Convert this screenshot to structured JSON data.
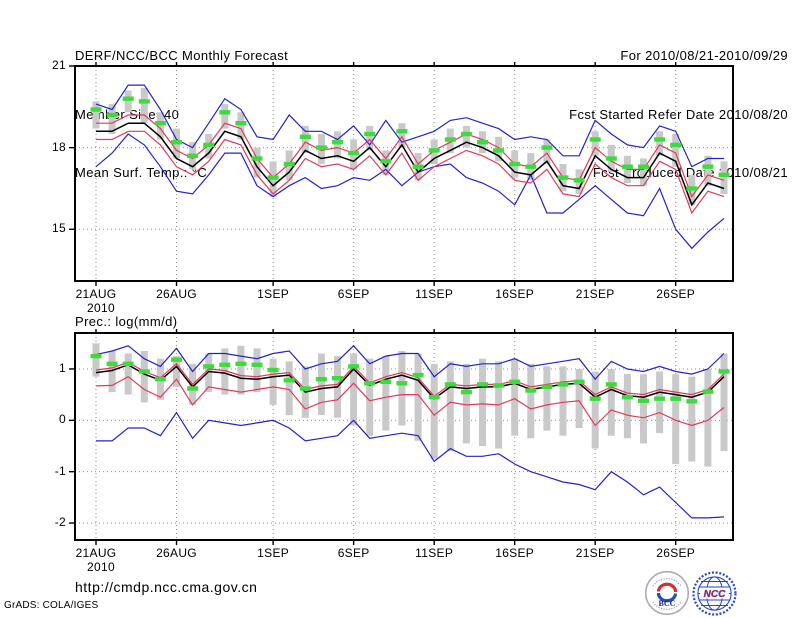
{
  "header": {
    "title": "DERF/NCC/BCC Monthly Forecast",
    "member_size": "Member Size=40",
    "for_range": "For 2010/08/21-2010/09/29",
    "fcst_started": "Fcst Started Refer Date 2010/08/20",
    "fcst_produced": "Fcst Produced Date 2010/08/21"
  },
  "footer": {
    "url": "http://cmdp.ncc.cma.gov.cn",
    "credit": "GrADS: COLA/IGES",
    "logos": {
      "bcc": "BCC",
      "ncc": "NCC"
    }
  },
  "chart_data": [
    {
      "type": "line",
      "title": "Mean Surf. Temp.: °C",
      "x_tick_labels": [
        "21AUG",
        "26AUG",
        "1SEP",
        "6SEP",
        "11SEP",
        "16SEP",
        "21SEP",
        "26SEP"
      ],
      "x_tick_days": [
        0,
        5,
        11,
        16,
        21,
        26,
        31,
        36
      ],
      "x_year_label": "2010",
      "n_points": 40,
      "ylim": [
        13.1,
        21
      ],
      "yticks": [
        15,
        18,
        21
      ],
      "ytick_labels": [
        "15",
        "18",
        "21"
      ],
      "grid": true,
      "series": [
        {
          "name": "ensemble-max",
          "color": "#2323cc",
          "values": [
            19.6,
            19.4,
            20.3,
            20.3,
            19.4,
            18.3,
            18.0,
            18.9,
            19.8,
            19.4,
            18.4,
            18.3,
            19.2,
            18.6,
            18.6,
            18.3,
            18.8,
            18.1,
            19.0,
            18.2,
            18.4,
            18.6,
            19.0,
            19.1,
            18.9,
            18.7,
            18.3,
            18.4,
            18.3,
            17.7,
            17.7,
            19.0,
            18.5,
            18.1,
            18.0,
            18.8,
            18.6,
            17.3,
            17.6,
            17.6
          ]
        },
        {
          "name": "ensemble-min",
          "color": "#2323cc",
          "values": [
            17.3,
            17.8,
            18.5,
            18.1,
            17.3,
            16.4,
            16.3,
            17.0,
            17.8,
            17.8,
            16.6,
            16.2,
            16.6,
            16.9,
            16.5,
            16.6,
            16.9,
            16.8,
            17.2,
            16.6,
            17.1,
            17.3,
            17.4,
            16.9,
            16.7,
            16.4,
            15.9,
            17.0,
            15.6,
            15.6,
            16.1,
            16.6,
            16.1,
            15.6,
            15.5,
            16.5,
            15.0,
            14.3,
            14.9,
            15.4
          ]
        },
        {
          "name": "mean-plus-std",
          "color": "#e23a58",
          "values": [
            18.9,
            18.9,
            19.2,
            19.2,
            18.7,
            17.9,
            17.6,
            18.1,
            18.9,
            18.7,
            17.6,
            16.9,
            17.4,
            18.2,
            17.9,
            18.0,
            17.8,
            18.3,
            17.6,
            18.4,
            17.4,
            17.9,
            18.2,
            18.5,
            18.3,
            18.0,
            17.4,
            17.3,
            17.8,
            16.9,
            16.8,
            18.0,
            17.5,
            17.2,
            17.2,
            18.1,
            17.8,
            16.2,
            17.0,
            16.8
          ]
        },
        {
          "name": "mean-minus-std",
          "color": "#e23a58",
          "values": [
            18.3,
            18.3,
            18.6,
            18.6,
            18.1,
            17.3,
            17.0,
            17.5,
            18.3,
            18.1,
            17.0,
            16.3,
            16.8,
            17.6,
            17.3,
            17.4,
            17.2,
            17.7,
            17.0,
            17.8,
            16.8,
            17.3,
            17.6,
            17.9,
            17.7,
            17.4,
            16.8,
            16.7,
            17.2,
            16.3,
            16.2,
            17.4,
            16.9,
            16.6,
            16.6,
            17.5,
            17.2,
            15.6,
            16.4,
            16.2
          ]
        },
        {
          "name": "ensemble-mean",
          "color": "#000000",
          "values": [
            18.6,
            18.6,
            18.9,
            18.9,
            18.4,
            17.6,
            17.3,
            17.8,
            18.6,
            18.4,
            17.3,
            16.6,
            17.1,
            17.9,
            17.6,
            17.7,
            17.5,
            18.0,
            17.3,
            18.1,
            17.1,
            17.6,
            17.9,
            18.2,
            18.0,
            17.7,
            17.1,
            17.0,
            17.5,
            16.6,
            16.5,
            17.7,
            17.2,
            16.9,
            16.9,
            17.8,
            17.5,
            15.9,
            16.7,
            16.5
          ]
        }
      ],
      "bars": {
        "name": "spread-bar",
        "color": "#c9c9c9",
        "top": [
          19.7,
          19.6,
          20.1,
          20.2,
          19.3,
          18.7,
          18.2,
          18.5,
          19.6,
          19.3,
          18.0,
          17.5,
          17.9,
          18.8,
          18.5,
          18.6,
          18.3,
          18.8,
          17.9,
          18.9,
          17.8,
          18.3,
          18.7,
          18.8,
          18.6,
          18.4,
          17.9,
          17.8,
          18.3,
          17.4,
          17.2,
          18.6,
          18.1,
          17.7,
          17.6,
          18.6,
          18.5,
          17.0,
          17.7,
          17.5
        ],
        "bottom": [
          18.7,
          18.5,
          19.3,
          18.9,
          18.3,
          17.6,
          17.2,
          17.6,
          18.7,
          18.3,
          16.9,
          16.2,
          16.8,
          17.8,
          17.4,
          17.6,
          17.2,
          17.9,
          17.0,
          18.0,
          16.8,
          17.4,
          17.8,
          18.0,
          17.8,
          17.5,
          16.9,
          16.8,
          17.4,
          16.4,
          16.3,
          17.7,
          17.1,
          16.7,
          16.6,
          17.7,
          17.3,
          15.9,
          16.6,
          16.3
        ]
      },
      "markers": {
        "name": "mean-marker",
        "color": "#3cdc3c",
        "values": [
          19.4,
          19.2,
          19.8,
          19.7,
          18.9,
          18.2,
          17.7,
          18.1,
          19.3,
          18.9,
          17.6,
          16.9,
          17.4,
          18.4,
          18.0,
          18.2,
          17.8,
          18.5,
          17.5,
          18.6,
          17.3,
          17.9,
          18.3,
          18.5,
          18.2,
          17.9,
          17.4,
          17.3,
          18.0,
          16.9,
          16.8,
          18.3,
          17.6,
          17.3,
          17.3,
          18.3,
          18.1,
          16.5,
          17.3,
          17.0
        ]
      }
    },
    {
      "type": "line",
      "title": "Prec.: log(mm/d)",
      "x_tick_labels": [
        "21AUG",
        "26AUG",
        "1SEP",
        "6SEP",
        "11SEP",
        "16SEP",
        "21SEP",
        "26SEP"
      ],
      "x_tick_days": [
        0,
        5,
        11,
        16,
        21,
        26,
        31,
        36
      ],
      "x_year_label": "2010",
      "n_points": 40,
      "ylim": [
        -2.33,
        1.7
      ],
      "yticks": [
        -2,
        -1,
        0,
        1
      ],
      "ytick_labels": [
        "-2",
        "-1",
        "0",
        "1"
      ],
      "grid": true,
      "series": [
        {
          "name": "ensemble-max",
          "color": "#2323cc",
          "values": [
            1.28,
            1.35,
            1.45,
            1.2,
            1.05,
            1.4,
            0.95,
            1.3,
            1.3,
            1.25,
            1.2,
            1.3,
            1.35,
            1.0,
            1.1,
            1.15,
            1.45,
            1.1,
            1.25,
            1.3,
            1.3,
            0.85,
            1.1,
            1.05,
            1.1,
            1.1,
            1.2,
            1.05,
            1.1,
            1.15,
            1.2,
            0.8,
            1.15,
            1.0,
            0.95,
            1.05,
            0.95,
            0.9,
            1.0,
            1.3
          ]
        },
        {
          "name": "ensemble-min",
          "color": "#2323cc",
          "values": [
            -0.4,
            -0.4,
            -0.15,
            -0.15,
            -0.3,
            0.15,
            -0.35,
            0.0,
            -0.05,
            -0.1,
            -0.05,
            0.0,
            -0.15,
            -0.4,
            -0.35,
            -0.3,
            0.0,
            -0.35,
            -0.3,
            -0.25,
            -0.3,
            -0.8,
            -0.55,
            -0.7,
            -0.7,
            -0.65,
            -0.85,
            -1.0,
            -1.1,
            -1.2,
            -1.25,
            -1.35,
            -1.0,
            -1.2,
            -1.45,
            -1.3,
            -1.6,
            -1.9,
            -1.9,
            -1.88
          ]
        },
        {
          "name": "mean-plus-std",
          "color": "#e23a58",
          "values": [
            0.98,
            1.02,
            1.13,
            0.95,
            0.83,
            1.1,
            0.7,
            1.0,
            0.97,
            0.87,
            0.85,
            0.9,
            0.93,
            0.6,
            0.67,
            0.7,
            1.05,
            0.73,
            0.85,
            0.93,
            0.83,
            0.47,
            0.7,
            0.67,
            0.7,
            0.7,
            0.77,
            0.65,
            0.7,
            0.75,
            0.77,
            0.5,
            0.65,
            0.53,
            0.5,
            0.6,
            0.55,
            0.5,
            0.6,
            0.9
          ]
        },
        {
          "name": "mean-minus-std",
          "color": "#e23a58",
          "values": [
            0.67,
            0.68,
            0.85,
            0.6,
            0.45,
            0.8,
            0.3,
            0.65,
            0.6,
            0.55,
            0.6,
            0.65,
            0.6,
            0.22,
            0.35,
            0.4,
            0.72,
            0.38,
            0.45,
            0.5,
            0.5,
            0.1,
            0.35,
            0.3,
            0.32,
            0.3,
            0.42,
            0.22,
            0.3,
            0.35,
            0.38,
            -0.1,
            0.2,
            0.1,
            0.05,
            0.15,
            0.0,
            -0.1,
            0.0,
            0.25
          ]
        },
        {
          "name": "ensemble-mean",
          "color": "#000000",
          "values": [
            0.93,
            0.97,
            1.08,
            0.9,
            0.78,
            1.05,
            0.65,
            0.95,
            0.92,
            0.82,
            0.8,
            0.85,
            0.88,
            0.55,
            0.62,
            0.65,
            1.0,
            0.68,
            0.8,
            0.88,
            0.78,
            0.42,
            0.65,
            0.62,
            0.65,
            0.65,
            0.72,
            0.6,
            0.65,
            0.7,
            0.72,
            0.45,
            0.6,
            0.48,
            0.45,
            0.55,
            0.5,
            0.45,
            0.55,
            0.85
          ]
        }
      ],
      "bars": {
        "name": "spread-bar",
        "color": "#c9c9c9",
        "top": [
          1.5,
          1.35,
          1.3,
          1.35,
          1.2,
          1.25,
          1.1,
          1.3,
          1.4,
          1.45,
          1.4,
          1.2,
          1.15,
          1.05,
          1.3,
          1.25,
          1.3,
          1.2,
          1.25,
          1.35,
          1.3,
          1.1,
          1.15,
          1.1,
          1.2,
          1.15,
          1.2,
          1.1,
          1.05,
          1.05,
          1.0,
          0.95,
          1.0,
          0.9,
          0.9,
          0.95,
          0.9,
          0.85,
          1.0,
          1.3
        ],
        "bottom": [
          0.85,
          0.55,
          0.5,
          0.35,
          0.4,
          0.65,
          0.3,
          0.55,
          0.5,
          0.5,
          0.55,
          0.3,
          0.1,
          0.05,
          0.1,
          0.05,
          -0.1,
          -0.3,
          -0.2,
          -0.1,
          -0.4,
          -0.75,
          -0.6,
          -0.45,
          -0.5,
          -0.55,
          -0.3,
          -0.35,
          -0.2,
          -0.3,
          -0.15,
          -0.55,
          -0.3,
          -0.35,
          -0.45,
          -0.25,
          -0.85,
          -0.8,
          -0.9,
          -0.6
        ]
      },
      "markers": {
        "name": "mean-marker",
        "color": "#3cdc3c",
        "values": [
          1.25,
          1.1,
          1.1,
          0.95,
          0.8,
          1.18,
          0.62,
          1.05,
          1.08,
          1.1,
          1.08,
          0.98,
          0.78,
          0.62,
          0.8,
          0.82,
          1.05,
          0.72,
          0.75,
          0.72,
          0.88,
          0.45,
          0.7,
          0.55,
          0.7,
          0.68,
          0.75,
          0.58,
          0.65,
          0.7,
          0.75,
          0.42,
          0.7,
          0.45,
          0.38,
          0.42,
          0.42,
          0.37,
          0.56,
          0.95
        ]
      }
    }
  ]
}
